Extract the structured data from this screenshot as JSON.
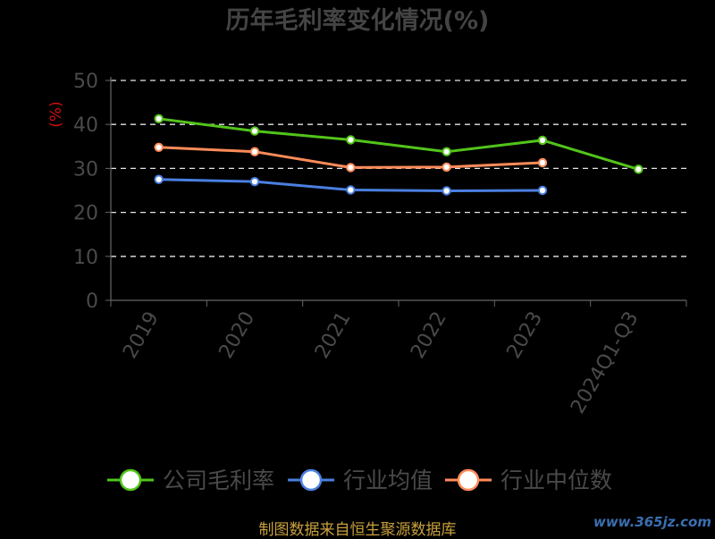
{
  "chart_data": {
    "type": "line",
    "title": "历年毛利率变化情况(%)",
    "ylabel": "(%)",
    "xlabel": "",
    "categories": [
      "2019",
      "2020",
      "2021",
      "2022",
      "2023",
      "2024Q1-Q3"
    ],
    "ylim": [
      0,
      50
    ],
    "yticks": [
      0,
      10,
      20,
      30,
      40,
      50
    ],
    "grid": true,
    "legend_position": "bottom",
    "series": [
      {
        "name": "公司毛利率",
        "color": "#52c41a",
        "values": [
          41.3,
          38.5,
          36.5,
          33.8,
          36.4,
          29.8
        ]
      },
      {
        "name": "行业均值",
        "color": "#4a7fe0",
        "values": [
          27.5,
          27.0,
          25.1,
          24.9,
          25.0,
          null
        ]
      },
      {
        "name": "行业中位数",
        "color": "#ff8c5a",
        "values": [
          34.8,
          33.8,
          30.2,
          30.3,
          31.3,
          null
        ]
      }
    ]
  },
  "footer": {
    "source": "制图数据来自恒生聚源数据库",
    "watermark": "www.365jz.com"
  }
}
